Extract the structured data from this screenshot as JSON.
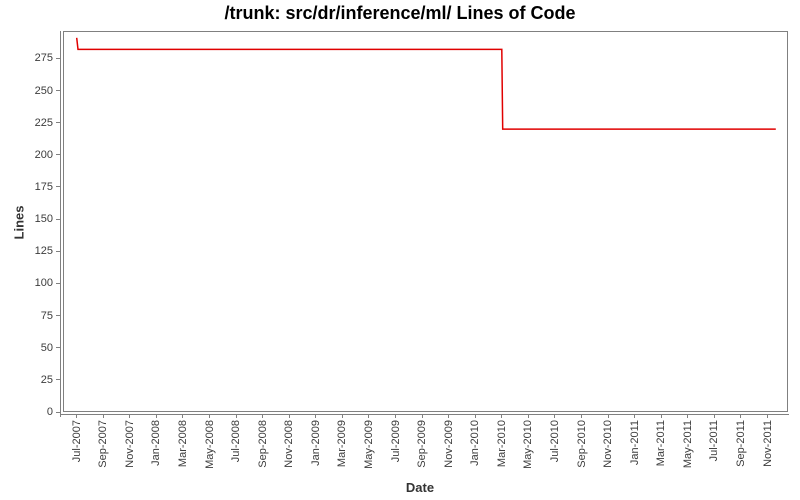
{
  "title": "/trunk: src/dr/inference/ml/ Lines of Code",
  "colors": {
    "line": "#e00000",
    "axis": "#808080",
    "tick_text": "#3c3c3c",
    "label_text": "#333333",
    "title_text": "#000000"
  },
  "chart_data": {
    "type": "line",
    "style": "step",
    "title": "/trunk: src/dr/inference/ml/ Lines of Code",
    "xlabel": "Date",
    "ylabel": "Lines",
    "grid": "off",
    "legend": "none",
    "ylim": [
      0,
      296
    ],
    "y_ticks": [
      0,
      25,
      50,
      75,
      100,
      125,
      150,
      175,
      200,
      225,
      250,
      275
    ],
    "x_tick_labels": [
      "Jul-2007",
      "Sep-2007",
      "Nov-2007",
      "Jan-2008",
      "Mar-2008",
      "May-2008",
      "Jul-2008",
      "Sep-2008",
      "Nov-2008",
      "Jan-2009",
      "Mar-2009",
      "May-2009",
      "Jul-2009",
      "Sep-2009",
      "Nov-2009",
      "Jan-2010",
      "Mar-2010",
      "May-2010",
      "Jul-2010",
      "Sep-2010",
      "Nov-2010",
      "Jan-2011",
      "Mar-2011",
      "May-2011",
      "Jul-2011",
      "Sep-2011",
      "Nov-2011"
    ],
    "series": [
      {
        "name": "Lines of Code",
        "color": "#e00000",
        "points": [
          {
            "date": "2007-07-01",
            "value": 291
          },
          {
            "date": "2007-07-04",
            "value": 282
          },
          {
            "date": "2010-03-01",
            "value": 282
          },
          {
            "date": "2010-03-03",
            "value": 220
          },
          {
            "date": "2011-11-20",
            "value": 220
          }
        ]
      }
    ]
  }
}
